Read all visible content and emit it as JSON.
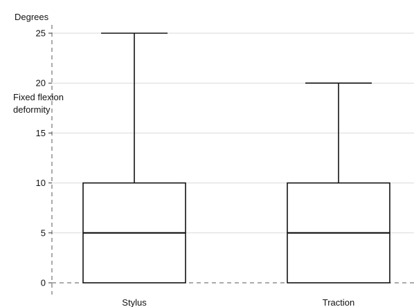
{
  "chart_data": {
    "type": "box",
    "ylabel_top": "Degrees",
    "ylabel_side": [
      "Fixed flexion",
      "deformity"
    ],
    "ylim": [
      0,
      25
    ],
    "yticks": [
      0,
      5,
      10,
      15,
      20,
      25
    ],
    "categories": [
      "Stylus",
      "Traction"
    ],
    "boxes": [
      {
        "name": "Stylus",
        "min": 0,
        "q1": 0,
        "median": 5,
        "q3": 10,
        "max": 25
      },
      {
        "name": "Traction",
        "min": 0,
        "q1": 0,
        "median": 5,
        "q3": 10,
        "max": 20
      }
    ],
    "grid": true
  }
}
